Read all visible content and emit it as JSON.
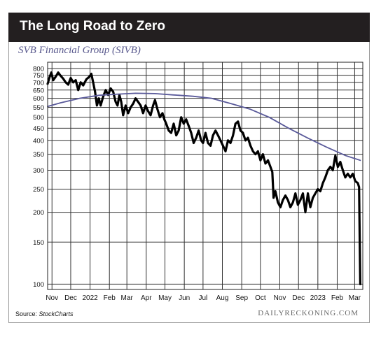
{
  "header": {
    "title": "The Long Road to Zero",
    "subtitle": "SVB Financial Group (SIVB)"
  },
  "footer": {
    "source_label": "Source: ",
    "source_name": "StockCharts",
    "brand": "DAILYRECKONING.COM"
  },
  "colors": {
    "banner": "#231f20",
    "price_line": "#000000",
    "moving_average": "#5a5a9a",
    "grid": "#333333",
    "subtitle": "#5a5a8e"
  },
  "chart_data": {
    "type": "line",
    "title": "SVB Financial Group (SIVB)",
    "xlabel": "",
    "ylabel": "",
    "y_scale": "log",
    "ylim": [
      95,
      850
    ],
    "grid": true,
    "y_ticks": [
      800,
      750,
      700,
      650,
      600,
      550,
      500,
      450,
      400,
      350,
      300,
      250,
      200,
      150,
      100
    ],
    "x_ticks": [
      {
        "label": "Nov",
        "date": "2021-11-01"
      },
      {
        "label": "Dec",
        "date": "2021-12-01"
      },
      {
        "label": "2022",
        "date": "2022-01-01"
      },
      {
        "label": "Feb",
        "date": "2022-02-01"
      },
      {
        "label": "Mar",
        "date": "2022-03-01"
      },
      {
        "label": "Apr",
        "date": "2022-04-01"
      },
      {
        "label": "May",
        "date": "2022-05-01"
      },
      {
        "label": "Jun",
        "date": "2022-06-01"
      },
      {
        "label": "Jul",
        "date": "2022-07-01"
      },
      {
        "label": "Aug",
        "date": "2022-08-01"
      },
      {
        "label": "Sep",
        "date": "2022-09-01"
      },
      {
        "label": "Oct",
        "date": "2022-10-01"
      },
      {
        "label": "Nov",
        "date": "2022-11-01"
      },
      {
        "label": "Dec",
        "date": "2022-12-01"
      },
      {
        "label": "2023",
        "date": "2023-01-01"
      },
      {
        "label": "Feb",
        "date": "2023-02-01"
      },
      {
        "label": "Mar",
        "date": "2023-03-01"
      }
    ],
    "series": [
      {
        "type": "line",
        "points": [
          [
            "2021-10-25",
            690
          ],
          [
            "2021-10-28",
            735
          ],
          [
            "2021-10-31",
            770
          ],
          [
            "2021-11-03",
            715
          ],
          [
            "2021-11-07",
            740
          ],
          [
            "2021-11-11",
            770
          ],
          [
            "2021-11-15",
            745
          ],
          [
            "2021-11-19",
            725
          ],
          [
            "2021-11-23",
            700
          ],
          [
            "2021-11-27",
            685
          ],
          [
            "2021-12-01",
            730
          ],
          [
            "2021-12-05",
            700
          ],
          [
            "2021-12-09",
            715
          ],
          [
            "2021-12-13",
            650
          ],
          [
            "2021-12-17",
            700
          ],
          [
            "2021-12-21",
            680
          ],
          [
            "2021-12-26",
            720
          ],
          [
            "2021-12-31",
            740
          ],
          [
            "2022-01-03",
            760
          ],
          [
            "2022-01-06",
            700
          ],
          [
            "2022-01-09",
            640
          ],
          [
            "2022-01-12",
            560
          ],
          [
            "2022-01-15",
            600
          ],
          [
            "2022-01-18",
            560
          ],
          [
            "2022-01-22",
            610
          ],
          [
            "2022-01-26",
            650
          ],
          [
            "2022-01-30",
            620
          ],
          [
            "2022-02-03",
            660
          ],
          [
            "2022-02-07",
            640
          ],
          [
            "2022-02-11",
            580
          ],
          [
            "2022-02-14",
            560
          ],
          [
            "2022-02-17",
            620
          ],
          [
            "2022-02-20",
            580
          ],
          [
            "2022-02-23",
            510
          ],
          [
            "2022-02-27",
            560
          ],
          [
            "2022-03-03",
            520
          ],
          [
            "2022-03-07",
            550
          ],
          [
            "2022-03-11",
            570
          ],
          [
            "2022-03-15",
            600
          ],
          [
            "2022-03-19",
            580
          ],
          [
            "2022-03-23",
            560
          ],
          [
            "2022-03-27",
            520
          ],
          [
            "2022-03-31",
            560
          ],
          [
            "2022-04-04",
            530
          ],
          [
            "2022-04-08",
            510
          ],
          [
            "2022-04-12",
            560
          ],
          [
            "2022-04-15",
            590
          ],
          [
            "2022-04-19",
            540
          ],
          [
            "2022-04-23",
            500
          ],
          [
            "2022-04-27",
            520
          ],
          [
            "2022-04-30",
            490
          ],
          [
            "2022-05-03",
            470
          ],
          [
            "2022-05-07",
            440
          ],
          [
            "2022-05-11",
            430
          ],
          [
            "2022-05-15",
            470
          ],
          [
            "2022-05-19",
            420
          ],
          [
            "2022-05-23",
            440
          ],
          [
            "2022-05-27",
            500
          ],
          [
            "2022-05-31",
            470
          ],
          [
            "2022-06-04",
            490
          ],
          [
            "2022-06-08",
            460
          ],
          [
            "2022-06-12",
            430
          ],
          [
            "2022-06-16",
            390
          ],
          [
            "2022-06-20",
            410
          ],
          [
            "2022-06-24",
            440
          ],
          [
            "2022-06-28",
            400
          ],
          [
            "2022-07-01",
            390
          ],
          [
            "2022-07-05",
            430
          ],
          [
            "2022-07-09",
            390
          ],
          [
            "2022-07-13",
            380
          ],
          [
            "2022-07-17",
            420
          ],
          [
            "2022-07-21",
            440
          ],
          [
            "2022-07-25",
            420
          ],
          [
            "2022-07-29",
            400
          ],
          [
            "2022-08-02",
            380
          ],
          [
            "2022-08-06",
            360
          ],
          [
            "2022-08-10",
            400
          ],
          [
            "2022-08-14",
            390
          ],
          [
            "2022-08-18",
            420
          ],
          [
            "2022-08-22",
            470
          ],
          [
            "2022-08-26",
            480
          ],
          [
            "2022-08-30",
            440
          ],
          [
            "2022-09-03",
            430
          ],
          [
            "2022-09-07",
            400
          ],
          [
            "2022-09-11",
            410
          ],
          [
            "2022-09-15",
            380
          ],
          [
            "2022-09-19",
            360
          ],
          [
            "2022-09-23",
            350
          ],
          [
            "2022-09-27",
            360
          ],
          [
            "2022-10-01",
            330
          ],
          [
            "2022-10-05",
            350
          ],
          [
            "2022-10-09",
            320
          ],
          [
            "2022-10-13",
            330
          ],
          [
            "2022-10-17",
            310
          ],
          [
            "2022-10-20",
            295
          ],
          [
            "2022-10-22",
            230
          ],
          [
            "2022-10-25",
            245
          ],
          [
            "2022-10-29",
            220
          ],
          [
            "2022-11-02",
            210
          ],
          [
            "2022-11-06",
            225
          ],
          [
            "2022-11-10",
            235
          ],
          [
            "2022-11-14",
            225
          ],
          [
            "2022-11-18",
            210
          ],
          [
            "2022-11-22",
            220
          ],
          [
            "2022-11-26",
            240
          ],
          [
            "2022-11-30",
            215
          ],
          [
            "2022-12-04",
            225
          ],
          [
            "2022-12-08",
            240
          ],
          [
            "2022-12-12",
            200
          ],
          [
            "2022-12-16",
            240
          ],
          [
            "2022-12-20",
            210
          ],
          [
            "2022-12-24",
            230
          ],
          [
            "2022-12-28",
            240
          ],
          [
            "2023-01-01",
            250
          ],
          [
            "2023-01-05",
            245
          ],
          [
            "2023-01-09",
            265
          ],
          [
            "2023-01-13",
            280
          ],
          [
            "2023-01-17",
            300
          ],
          [
            "2023-01-21",
            310
          ],
          [
            "2023-01-25",
            300
          ],
          [
            "2023-01-29",
            345
          ],
          [
            "2023-02-02",
            310
          ],
          [
            "2023-02-06",
            325
          ],
          [
            "2023-02-10",
            300
          ],
          [
            "2023-02-14",
            280
          ],
          [
            "2023-02-18",
            290
          ],
          [
            "2023-02-22",
            280
          ],
          [
            "2023-02-26",
            290
          ],
          [
            "2023-03-02",
            270
          ],
          [
            "2023-03-06",
            265
          ],
          [
            "2023-03-08",
            255
          ],
          [
            "2023-03-10",
            100
          ]
        ]
      },
      {
        "type": "moving-average",
        "points": [
          [
            "2021-10-25",
            555
          ],
          [
            "2021-11-15",
            575
          ],
          [
            "2021-12-15",
            600
          ],
          [
            "2022-01-15",
            618
          ],
          [
            "2022-02-15",
            625
          ],
          [
            "2022-03-15",
            630
          ],
          [
            "2022-04-15",
            628
          ],
          [
            "2022-05-15",
            620
          ],
          [
            "2022-06-15",
            612
          ],
          [
            "2022-07-15",
            600
          ],
          [
            "2022-08-15",
            570
          ],
          [
            "2022-09-15",
            540
          ],
          [
            "2022-10-15",
            500
          ],
          [
            "2022-11-15",
            450
          ],
          [
            "2022-12-15",
            410
          ],
          [
            "2023-01-15",
            375
          ],
          [
            "2023-02-15",
            345
          ],
          [
            "2023-03-10",
            330
          ]
        ]
      }
    ]
  }
}
